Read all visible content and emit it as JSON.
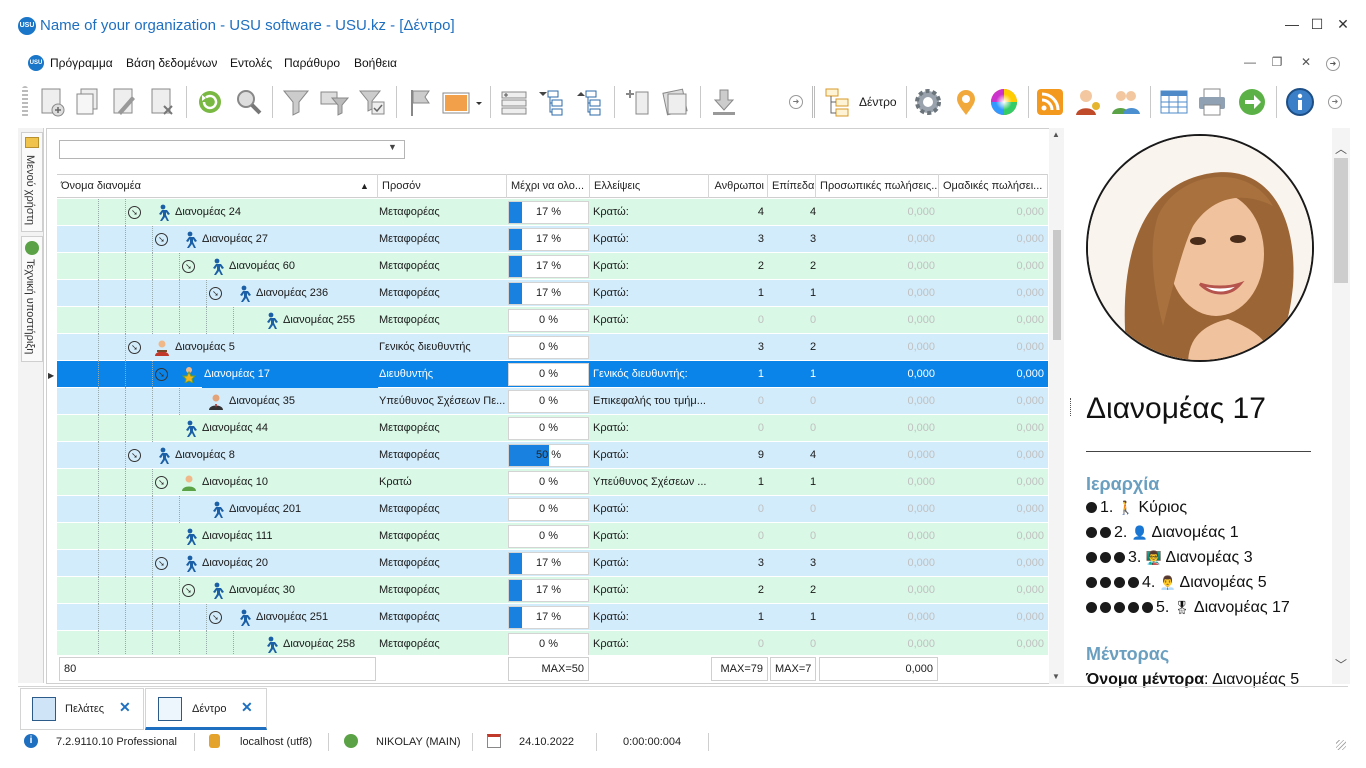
{
  "window": {
    "title": "Name of your organization - USU software - USU.kz - [Δέντρο]",
    "logo_text": "USU",
    "minimize": "—",
    "maximize": "☐",
    "close": "✕"
  },
  "menu": {
    "items": [
      "Πρόγραμμα",
      "Βάση δεδομένων",
      "Εντολές",
      "Παράθυρο",
      "Βοήθεια"
    ],
    "mdi": [
      "—",
      "❐",
      "✕",
      "➜"
    ]
  },
  "toolbar": {
    "tree_label": "Δέντρο"
  },
  "sidebar": {
    "tabs": [
      "Μενού χρήστη",
      "Τεχνική υποστήριξη"
    ]
  },
  "filter": {
    "value": ""
  },
  "grid": {
    "columns": [
      "Όνομα διανομέα",
      "Προσόν",
      "Μέχρι να ολο...",
      "Ελλείψεις",
      "Ανθρωποι",
      "Επίπεδα",
      "Προσωπικές πωλήσεις...",
      "Ομαδικές πωλήσει..."
    ],
    "rows": [
      {
        "name": "Διανομέας 24",
        "qual": "Μεταφορέας",
        "pct": "17 %",
        "pctv": 0.17,
        "lack": "Κρατώ:",
        "people": "4",
        "levels": "4",
        "ps": "0,000",
        "gs": "0,000"
      },
      {
        "name": "Διανομέας 27",
        "qual": "Μεταφορέας",
        "pct": "17 %",
        "pctv": 0.17,
        "lack": "Κρατώ:",
        "people": "3",
        "levels": "3",
        "ps": "0,000",
        "gs": "0,000"
      },
      {
        "name": "Διανομέας 60",
        "qual": "Μεταφορέας",
        "pct": "17 %",
        "pctv": 0.17,
        "lack": "Κρατώ:",
        "people": "2",
        "levels": "2",
        "ps": "0,000",
        "gs": "0,000"
      },
      {
        "name": "Διανομέας 236",
        "qual": "Μεταφορέας",
        "pct": "17 %",
        "pctv": 0.17,
        "lack": "Κρατώ:",
        "people": "1",
        "levels": "1",
        "ps": "0,000",
        "gs": "0,000"
      },
      {
        "name": "Διανομέας 255",
        "qual": "Μεταφορέας",
        "pct": "0 %",
        "pctv": 0,
        "lack": "Κρατώ:",
        "people": "0",
        "levels": "0",
        "ps": "0,000",
        "gs": "0,000"
      },
      {
        "name": "Διανομέας 5",
        "qual": "Γενικός διευθυντής",
        "pct": "0 %",
        "pctv": 0,
        "lack": "",
        "people": "3",
        "levels": "2",
        "ps": "0,000",
        "gs": "0,000"
      },
      {
        "name": "Διανομέας 17",
        "qual": "Διευθυντής",
        "pct": "0 %",
        "pctv": 0,
        "lack": "Γενικός διευθυντής:",
        "people": "1",
        "levels": "1",
        "ps": "0,000",
        "gs": "0,000"
      },
      {
        "name": "Διανομέας 35",
        "qual": "Υπεύθυνος Σχέσεων Πε...",
        "pct": "0 %",
        "pctv": 0,
        "lack": "Επικεφαλής του τμήμ...",
        "people": "0",
        "levels": "0",
        "ps": "0,000",
        "gs": "0,000"
      },
      {
        "name": "Διανομέας 44",
        "qual": "Μεταφορέας",
        "pct": "0 %",
        "pctv": 0,
        "lack": "Κρατώ:",
        "people": "0",
        "levels": "0",
        "ps": "0,000",
        "gs": "0,000"
      },
      {
        "name": "Διανομέας 8",
        "qual": "Μεταφορέας",
        "pct": "50 %",
        "pctv": 0.5,
        "lack": "Κρατώ:",
        "people": "9",
        "levels": "4",
        "ps": "0,000",
        "gs": "0,000"
      },
      {
        "name": "Διανομέας 10",
        "qual": "Κρατώ",
        "pct": "0 %",
        "pctv": 0,
        "lack": "Υπεύθυνος Σχέσεων ...",
        "people": "1",
        "levels": "1",
        "ps": "0,000",
        "gs": "0,000"
      },
      {
        "name": "Διανομέας 201",
        "qual": "Μεταφορέας",
        "pct": "0 %",
        "pctv": 0,
        "lack": "Κρατώ:",
        "people": "0",
        "levels": "0",
        "ps": "0,000",
        "gs": "0,000"
      },
      {
        "name": "Διανομέας 111",
        "qual": "Μεταφορέας",
        "pct": "0 %",
        "pctv": 0,
        "lack": "Κρατώ:",
        "people": "0",
        "levels": "0",
        "ps": "0,000",
        "gs": "0,000"
      },
      {
        "name": "Διανομέας 20",
        "qual": "Μεταφορέας",
        "pct": "17 %",
        "pctv": 0.17,
        "lack": "Κρατώ:",
        "people": "3",
        "levels": "3",
        "ps": "0,000",
        "gs": "0,000"
      },
      {
        "name": "Διανομέας 30",
        "qual": "Μεταφορέας",
        "pct": "17 %",
        "pctv": 0.17,
        "lack": "Κρατώ:",
        "people": "2",
        "levels": "2",
        "ps": "0,000",
        "gs": "0,000"
      },
      {
        "name": "Διανομέας 251",
        "qual": "Μεταφορέας",
        "pct": "17 %",
        "pctv": 0.17,
        "lack": "Κρατώ:",
        "people": "1",
        "levels": "1",
        "ps": "0,000",
        "gs": "0,000"
      },
      {
        "name": "Διανομέας 258",
        "qual": "Μεταφορέας",
        "pct": "0 %",
        "pctv": 0,
        "lack": "Κρατώ:",
        "people": "0",
        "levels": "0",
        "ps": "0,000",
        "gs": "0,000"
      }
    ],
    "footer": {
      "count": "80",
      "max_pct": "MAX=50",
      "max_people": "MAX=79",
      "max_levels": "MAX=7",
      "sum_personal": "0,000"
    }
  },
  "details": {
    "name": "Διανομέας 17",
    "hierarchy_title": "Ιεραρχία",
    "hierarchy": [
      {
        "label": "1.",
        "name": "Κύριος",
        "dots": 1,
        "icon": "🚶"
      },
      {
        "label": "2.",
        "name": "Διανομέας 1",
        "dots": 2,
        "icon": "👤"
      },
      {
        "label": "3.",
        "name": "Διανομέας 3",
        "dots": 3,
        "icon": "👨‍🏫"
      },
      {
        "label": "4.",
        "name": "Διανομέας 5",
        "dots": 4,
        "icon": "👨‍💼"
      },
      {
        "label": "5.",
        "name": "Διανομέας 17",
        "dots": 5,
        "icon": "🎖"
      }
    ],
    "mentor_title": "Μέντορας",
    "mentor_label": "Όνομα μέντορα",
    "mentor_name": "Διανομέας 5"
  },
  "tabs": [
    {
      "label": "Πελάτες",
      "close": "✕"
    },
    {
      "label": "Δέντρο",
      "close": "✕"
    }
  ],
  "status": {
    "version": "7.2.9110.10 Professional",
    "db": "localhost (utf8)",
    "user": "NIKOLAY (MAIN)",
    "date": "24.10.2022",
    "timer": "0:00:00:004"
  },
  "colors": {
    "accent": "#1e6fc0",
    "selected_row": "#0a84e8",
    "row_green": "#d9f8e6",
    "row_blue": "#d3ecfb",
    "bar_blue": "#1982e0",
    "section_title": "#6a9fc0"
  }
}
